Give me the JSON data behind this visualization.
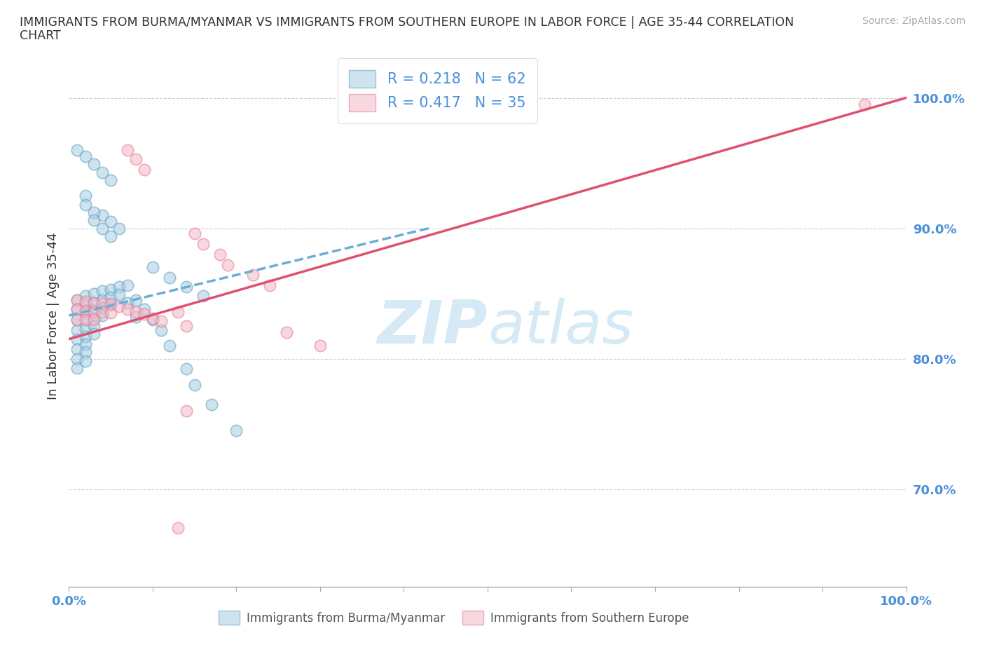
{
  "title_line1": "IMMIGRANTS FROM BURMA/MYANMAR VS IMMIGRANTS FROM SOUTHERN EUROPE IN LABOR FORCE | AGE 35-44 CORRELATION",
  "title_line2": "CHART",
  "source_text": "Source: ZipAtlas.com",
  "ylabel": "In Labor Force | Age 35-44",
  "x_min": 0.0,
  "x_max": 1.0,
  "y_min": 0.625,
  "y_max": 1.04,
  "y_ticks": [
    0.7,
    0.8,
    0.9,
    1.0
  ],
  "y_tick_labels": [
    "70.0%",
    "80.0%",
    "90.0%",
    "100.0%"
  ],
  "color_blue": "#a8cce0",
  "color_pink": "#f4b8c8",
  "color_blue_edge": "#5b9fc4",
  "color_pink_edge": "#e8748a",
  "color_blue_line": "#6aaed6",
  "color_pink_line": "#e05070",
  "color_text_axis": "#4a90d9",
  "color_grid": "#cccccc",
  "watermark_color": "#d5eaf5",
  "blue_scatter_x": [
    0.01,
    0.01,
    0.01,
    0.01,
    0.01,
    0.01,
    0.01,
    0.01,
    0.02,
    0.02,
    0.02,
    0.02,
    0.02,
    0.02,
    0.02,
    0.02,
    0.02,
    0.03,
    0.03,
    0.03,
    0.03,
    0.03,
    0.03,
    0.04,
    0.04,
    0.04,
    0.04,
    0.05,
    0.05,
    0.05,
    0.06,
    0.06,
    0.07,
    0.07,
    0.08,
    0.08,
    0.09,
    0.1,
    0.11,
    0.12,
    0.14,
    0.15,
    0.17,
    0.2,
    0.04,
    0.05,
    0.06,
    0.02,
    0.02,
    0.03,
    0.03,
    0.04,
    0.05,
    0.1,
    0.12,
    0.14,
    0.16,
    0.01,
    0.02,
    0.03,
    0.04,
    0.05
  ],
  "blue_scatter_y": [
    0.845,
    0.838,
    0.83,
    0.822,
    0.815,
    0.807,
    0.8,
    0.793,
    0.848,
    0.842,
    0.836,
    0.83,
    0.823,
    0.817,
    0.811,
    0.805,
    0.798,
    0.85,
    0.843,
    0.837,
    0.831,
    0.825,
    0.819,
    0.852,
    0.845,
    0.839,
    0.833,
    0.853,
    0.847,
    0.841,
    0.855,
    0.849,
    0.856,
    0.843,
    0.845,
    0.832,
    0.838,
    0.83,
    0.822,
    0.81,
    0.792,
    0.78,
    0.765,
    0.745,
    0.91,
    0.905,
    0.9,
    0.925,
    0.918,
    0.912,
    0.906,
    0.9,
    0.894,
    0.87,
    0.862,
    0.855,
    0.848,
    0.96,
    0.955,
    0.949,
    0.943,
    0.937
  ],
  "pink_scatter_x": [
    0.01,
    0.01,
    0.01,
    0.02,
    0.02,
    0.02,
    0.03,
    0.03,
    0.03,
    0.04,
    0.04,
    0.05,
    0.05,
    0.06,
    0.07,
    0.08,
    0.09,
    0.1,
    0.11,
    0.13,
    0.14,
    0.15,
    0.16,
    0.18,
    0.19,
    0.22,
    0.24,
    0.26,
    0.3,
    0.14,
    0.13,
    0.95,
    0.07,
    0.08,
    0.09
  ],
  "pink_scatter_y": [
    0.845,
    0.838,
    0.83,
    0.844,
    0.837,
    0.83,
    0.843,
    0.836,
    0.83,
    0.842,
    0.836,
    0.842,
    0.835,
    0.84,
    0.838,
    0.836,
    0.834,
    0.831,
    0.829,
    0.836,
    0.825,
    0.896,
    0.888,
    0.88,
    0.872,
    0.864,
    0.856,
    0.82,
    0.81,
    0.76,
    0.67,
    0.995,
    0.96,
    0.953,
    0.945
  ],
  "blue_line_x": [
    0.0,
    0.43
  ],
  "blue_line_y": [
    0.833,
    0.9
  ],
  "pink_line_x": [
    0.0,
    1.0
  ],
  "pink_line_y": [
    0.815,
    1.0
  ]
}
